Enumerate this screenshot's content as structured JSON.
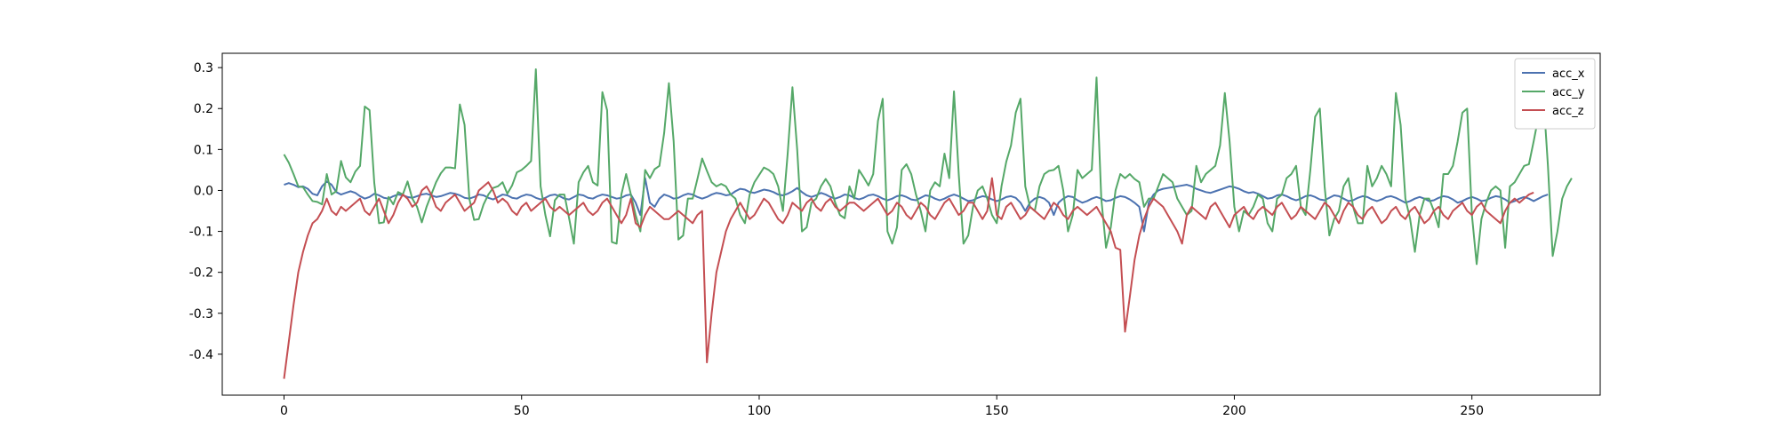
{
  "chart_data": {
    "type": "line",
    "title": "",
    "xlabel": "",
    "ylabel": "",
    "xlim": [
      -13,
      277
    ],
    "ylim": [
      -0.5,
      0.335
    ],
    "x_ticks": [
      0,
      50,
      100,
      150,
      200,
      250
    ],
    "y_ticks": [
      -0.4,
      -0.3,
      -0.2,
      -0.1,
      0.0,
      0.1,
      0.2,
      0.3
    ],
    "grid": false,
    "legend_position": "top-right",
    "x_start": 0,
    "x_step": 1,
    "series": [
      {
        "name": "acc_x",
        "color": "#4c72b0",
        "values": [
          0.014,
          0.018,
          0.014,
          0.008,
          0.01,
          0.004,
          -0.008,
          -0.012,
          0.01,
          0.022,
          0.014,
          -0.004,
          -0.01,
          -0.006,
          -0.002,
          -0.006,
          -0.014,
          -0.02,
          -0.016,
          -0.008,
          -0.012,
          -0.018,
          -0.02,
          -0.014,
          -0.01,
          -0.012,
          -0.016,
          -0.018,
          -0.014,
          -0.01,
          -0.008,
          -0.012,
          -0.016,
          -0.014,
          -0.01,
          -0.006,
          -0.008,
          -0.012,
          -0.018,
          -0.02,
          -0.016,
          -0.01,
          -0.012,
          -0.018,
          -0.022,
          -0.016,
          -0.01,
          -0.012,
          -0.018,
          -0.02,
          -0.014,
          -0.01,
          -0.012,
          -0.018,
          -0.022,
          -0.018,
          -0.012,
          -0.01,
          -0.014,
          -0.02,
          -0.022,
          -0.016,
          -0.01,
          -0.012,
          -0.018,
          -0.02,
          -0.014,
          -0.01,
          -0.012,
          -0.016,
          -0.02,
          -0.018,
          -0.012,
          -0.01,
          -0.03,
          -0.06,
          0.03,
          -0.03,
          -0.04,
          -0.02,
          -0.01,
          -0.014,
          -0.02,
          -0.018,
          -0.012,
          -0.008,
          -0.01,
          -0.016,
          -0.02,
          -0.016,
          -0.01,
          -0.006,
          -0.008,
          -0.012,
          -0.01,
          -0.002,
          0.004,
          0.002,
          -0.004,
          -0.006,
          -0.002,
          0.002,
          0.0,
          -0.004,
          -0.01,
          -0.012,
          -0.008,
          -0.002,
          0.006,
          -0.004,
          -0.012,
          -0.016,
          -0.012,
          -0.006,
          -0.01,
          -0.016,
          -0.02,
          -0.016,
          -0.01,
          -0.012,
          -0.018,
          -0.022,
          -0.018,
          -0.012,
          -0.01,
          -0.014,
          -0.02,
          -0.024,
          -0.02,
          -0.014,
          -0.012,
          -0.016,
          -0.022,
          -0.024,
          -0.018,
          -0.012,
          -0.014,
          -0.02,
          -0.024,
          -0.02,
          -0.014,
          -0.01,
          -0.014,
          -0.02,
          -0.026,
          -0.024,
          -0.018,
          -0.014,
          -0.016,
          -0.022,
          -0.026,
          -0.022,
          -0.016,
          -0.014,
          -0.018,
          -0.03,
          -0.05,
          -0.03,
          -0.02,
          -0.016,
          -0.02,
          -0.03,
          -0.06,
          -0.03,
          -0.02,
          -0.014,
          -0.016,
          -0.024,
          -0.03,
          -0.026,
          -0.02,
          -0.016,
          -0.02,
          -0.026,
          -0.024,
          -0.018,
          -0.014,
          -0.016,
          -0.022,
          -0.03,
          -0.04,
          -0.1,
          -0.03,
          -0.01,
          0.0,
          0.004,
          0.006,
          0.008,
          0.01,
          0.012,
          0.014,
          0.01,
          0.004,
          0.0,
          -0.004,
          -0.006,
          -0.002,
          0.002,
          0.006,
          0.01,
          0.008,
          0.004,
          -0.002,
          -0.006,
          -0.004,
          -0.008,
          -0.014,
          -0.02,
          -0.018,
          -0.012,
          -0.01,
          -0.014,
          -0.02,
          -0.024,
          -0.02,
          -0.014,
          -0.012,
          -0.016,
          -0.022,
          -0.024,
          -0.018,
          -0.012,
          -0.014,
          -0.02,
          -0.026,
          -0.024,
          -0.018,
          -0.014,
          -0.016,
          -0.022,
          -0.026,
          -0.022,
          -0.016,
          -0.014,
          -0.018,
          -0.024,
          -0.03,
          -0.026,
          -0.02,
          -0.016,
          -0.02,
          -0.026,
          -0.024,
          -0.018,
          -0.014,
          -0.016,
          -0.022,
          -0.03,
          -0.026,
          -0.02,
          -0.016,
          -0.02,
          -0.026,
          -0.024,
          -0.018,
          -0.014,
          -0.016,
          -0.022,
          -0.03,
          -0.026,
          -0.02,
          -0.016,
          -0.02,
          -0.026,
          -0.02,
          -0.014,
          -0.01
        ]
      },
      {
        "name": "acc_y",
        "color": "#55a868",
        "values": [
          0.088,
          0.068,
          0.04,
          0.01,
          0.008,
          -0.01,
          -0.026,
          -0.028,
          -0.034,
          0.04,
          -0.01,
          -0.002,
          0.072,
          0.032,
          0.02,
          0.046,
          0.06,
          0.205,
          0.196,
          0.018,
          -0.08,
          -0.078,
          -0.016,
          -0.034,
          -0.004,
          -0.01,
          0.022,
          -0.02,
          -0.04,
          -0.078,
          -0.04,
          -0.01,
          0.02,
          0.042,
          0.056,
          0.056,
          0.054,
          0.21,
          0.16,
          -0.02,
          -0.072,
          -0.07,
          -0.034,
          -0.01,
          0.006,
          0.01,
          0.02,
          -0.008,
          0.012,
          0.044,
          0.05,
          0.06,
          0.072,
          0.296,
          0.01,
          -0.06,
          -0.112,
          -0.024,
          -0.01,
          -0.01,
          -0.068,
          -0.13,
          0.02,
          0.044,
          0.06,
          0.02,
          0.012,
          0.24,
          0.196,
          -0.126,
          -0.13,
          -0.01,
          0.04,
          -0.01,
          -0.06,
          -0.1,
          0.05,
          0.03,
          0.052,
          0.06,
          0.14,
          0.262,
          0.12,
          -0.12,
          -0.11,
          -0.02,
          -0.02,
          0.028,
          0.078,
          0.048,
          0.02,
          0.01,
          0.016,
          0.01,
          -0.01,
          -0.02,
          -0.06,
          -0.08,
          -0.01,
          0.02,
          0.038,
          0.056,
          0.05,
          0.04,
          0.01,
          -0.05,
          0.09,
          0.252,
          0.1,
          -0.1,
          -0.09,
          -0.03,
          -0.02,
          0.01,
          0.028,
          0.01,
          -0.03,
          -0.06,
          -0.068,
          0.01,
          -0.02,
          0.05,
          0.032,
          0.012,
          0.04,
          0.17,
          0.224,
          -0.1,
          -0.13,
          -0.09,
          0.05,
          0.064,
          0.04,
          -0.01,
          -0.05,
          -0.1,
          0.0,
          0.02,
          0.01,
          0.09,
          0.03,
          0.242,
          0.04,
          -0.13,
          -0.11,
          -0.04,
          0.0,
          0.01,
          -0.02,
          -0.06,
          -0.08,
          0.01,
          0.07,
          0.11,
          0.19,
          0.224,
          0.01,
          -0.04,
          -0.05,
          0.01,
          0.04,
          0.048,
          0.05,
          0.06,
          0.0,
          -0.1,
          -0.06,
          0.05,
          0.03,
          0.04,
          0.05,
          0.276,
          -0.02,
          -0.14,
          -0.09,
          0.0,
          0.04,
          0.03,
          0.04,
          0.028,
          0.02,
          -0.04,
          -0.02,
          -0.02,
          0.01,
          0.04,
          0.03,
          0.02,
          -0.02,
          -0.04,
          -0.06,
          -0.05,
          0.06,
          0.02,
          0.04,
          0.05,
          0.06,
          0.11,
          0.238,
          0.12,
          -0.04,
          -0.1,
          -0.05,
          -0.06,
          -0.04,
          -0.01,
          -0.02,
          -0.08,
          -0.1,
          -0.02,
          -0.01,
          0.03,
          0.04,
          0.06,
          -0.04,
          -0.06,
          0.05,
          0.18,
          0.2,
          0.01,
          -0.11,
          -0.07,
          -0.05,
          0.01,
          0.03,
          -0.04,
          -0.08,
          -0.08,
          0.06,
          0.01,
          0.03,
          0.06,
          0.04,
          0.01,
          0.238,
          0.16,
          -0.02,
          -0.07,
          -0.15,
          -0.06,
          -0.02,
          -0.02,
          -0.05,
          -0.09,
          0.04,
          0.04,
          0.06,
          0.12,
          0.19,
          0.2,
          -0.06,
          -0.18,
          -0.07,
          -0.03,
          0.0,
          0.01,
          0.0,
          -0.14,
          0.01,
          0.02,
          0.04,
          0.06,
          0.064,
          0.12,
          0.18,
          0.24,
          0.06,
          -0.16,
          -0.1,
          -0.02,
          0.01,
          0.03
        ]
      },
      {
        "name": "acc_z",
        "color": "#c44e52",
        "values": [
          -0.46,
          -0.37,
          -0.28,
          -0.2,
          -0.15,
          -0.11,
          -0.08,
          -0.07,
          -0.05,
          -0.02,
          -0.05,
          -0.06,
          -0.04,
          -0.05,
          -0.04,
          -0.03,
          -0.02,
          -0.05,
          -0.06,
          -0.04,
          -0.02,
          -0.05,
          -0.08,
          -0.06,
          -0.03,
          -0.01,
          -0.02,
          -0.04,
          -0.03,
          0.0,
          0.01,
          -0.01,
          -0.04,
          -0.05,
          -0.03,
          -0.02,
          -0.01,
          -0.03,
          -0.05,
          -0.04,
          -0.03,
          0.0,
          0.01,
          0.02,
          0.0,
          -0.03,
          -0.02,
          -0.03,
          -0.05,
          -0.06,
          -0.04,
          -0.03,
          -0.05,
          -0.04,
          -0.03,
          -0.02,
          -0.04,
          -0.05,
          -0.04,
          -0.05,
          -0.06,
          -0.05,
          -0.04,
          -0.03,
          -0.05,
          -0.06,
          -0.05,
          -0.03,
          -0.02,
          -0.04,
          -0.06,
          -0.08,
          -0.06,
          -0.02,
          -0.08,
          -0.09,
          -0.06,
          -0.04,
          -0.05,
          -0.06,
          -0.07,
          -0.07,
          -0.06,
          -0.05,
          -0.06,
          -0.07,
          -0.08,
          -0.06,
          -0.05,
          -0.42,
          -0.3,
          -0.2,
          -0.15,
          -0.1,
          -0.07,
          -0.05,
          -0.03,
          -0.05,
          -0.07,
          -0.06,
          -0.04,
          -0.02,
          -0.03,
          -0.05,
          -0.07,
          -0.08,
          -0.06,
          -0.03,
          -0.04,
          -0.05,
          -0.03,
          -0.02,
          -0.04,
          -0.05,
          -0.03,
          -0.02,
          -0.04,
          -0.05,
          -0.04,
          -0.03,
          -0.03,
          -0.04,
          -0.05,
          -0.04,
          -0.03,
          -0.02,
          -0.04,
          -0.06,
          -0.05,
          -0.03,
          -0.04,
          -0.06,
          -0.07,
          -0.05,
          -0.03,
          -0.04,
          -0.06,
          -0.07,
          -0.05,
          -0.03,
          -0.02,
          -0.04,
          -0.06,
          -0.05,
          -0.03,
          -0.03,
          -0.05,
          -0.07,
          -0.05,
          0.03,
          -0.06,
          -0.07,
          -0.04,
          -0.03,
          -0.05,
          -0.07,
          -0.06,
          -0.04,
          -0.05,
          -0.06,
          -0.07,
          -0.05,
          -0.03,
          -0.04,
          -0.06,
          -0.07,
          -0.05,
          -0.04,
          -0.05,
          -0.06,
          -0.05,
          -0.04,
          -0.06,
          -0.08,
          -0.1,
          -0.14,
          -0.145,
          -0.345,
          -0.26,
          -0.17,
          -0.11,
          -0.07,
          -0.04,
          -0.02,
          -0.03,
          -0.04,
          -0.06,
          -0.08,
          -0.1,
          -0.13,
          -0.06,
          -0.04,
          -0.05,
          -0.06,
          -0.07,
          -0.04,
          -0.03,
          -0.05,
          -0.07,
          -0.09,
          -0.06,
          -0.05,
          -0.04,
          -0.06,
          -0.07,
          -0.05,
          -0.04,
          -0.05,
          -0.06,
          -0.04,
          -0.03,
          -0.05,
          -0.07,
          -0.06,
          -0.04,
          -0.05,
          -0.06,
          -0.07,
          -0.05,
          -0.03,
          -0.04,
          -0.06,
          -0.08,
          -0.05,
          -0.03,
          -0.04,
          -0.06,
          -0.07,
          -0.05,
          -0.04,
          -0.06,
          -0.08,
          -0.07,
          -0.05,
          -0.04,
          -0.06,
          -0.07,
          -0.05,
          -0.04,
          -0.06,
          -0.08,
          -0.07,
          -0.05,
          -0.04,
          -0.06,
          -0.07,
          -0.05,
          -0.04,
          -0.03,
          -0.05,
          -0.06,
          -0.04,
          -0.03,
          -0.05,
          -0.06,
          -0.07,
          -0.08,
          -0.05,
          -0.03,
          -0.02,
          -0.03,
          -0.02,
          -0.01,
          -0.005
        ]
      }
    ]
  }
}
